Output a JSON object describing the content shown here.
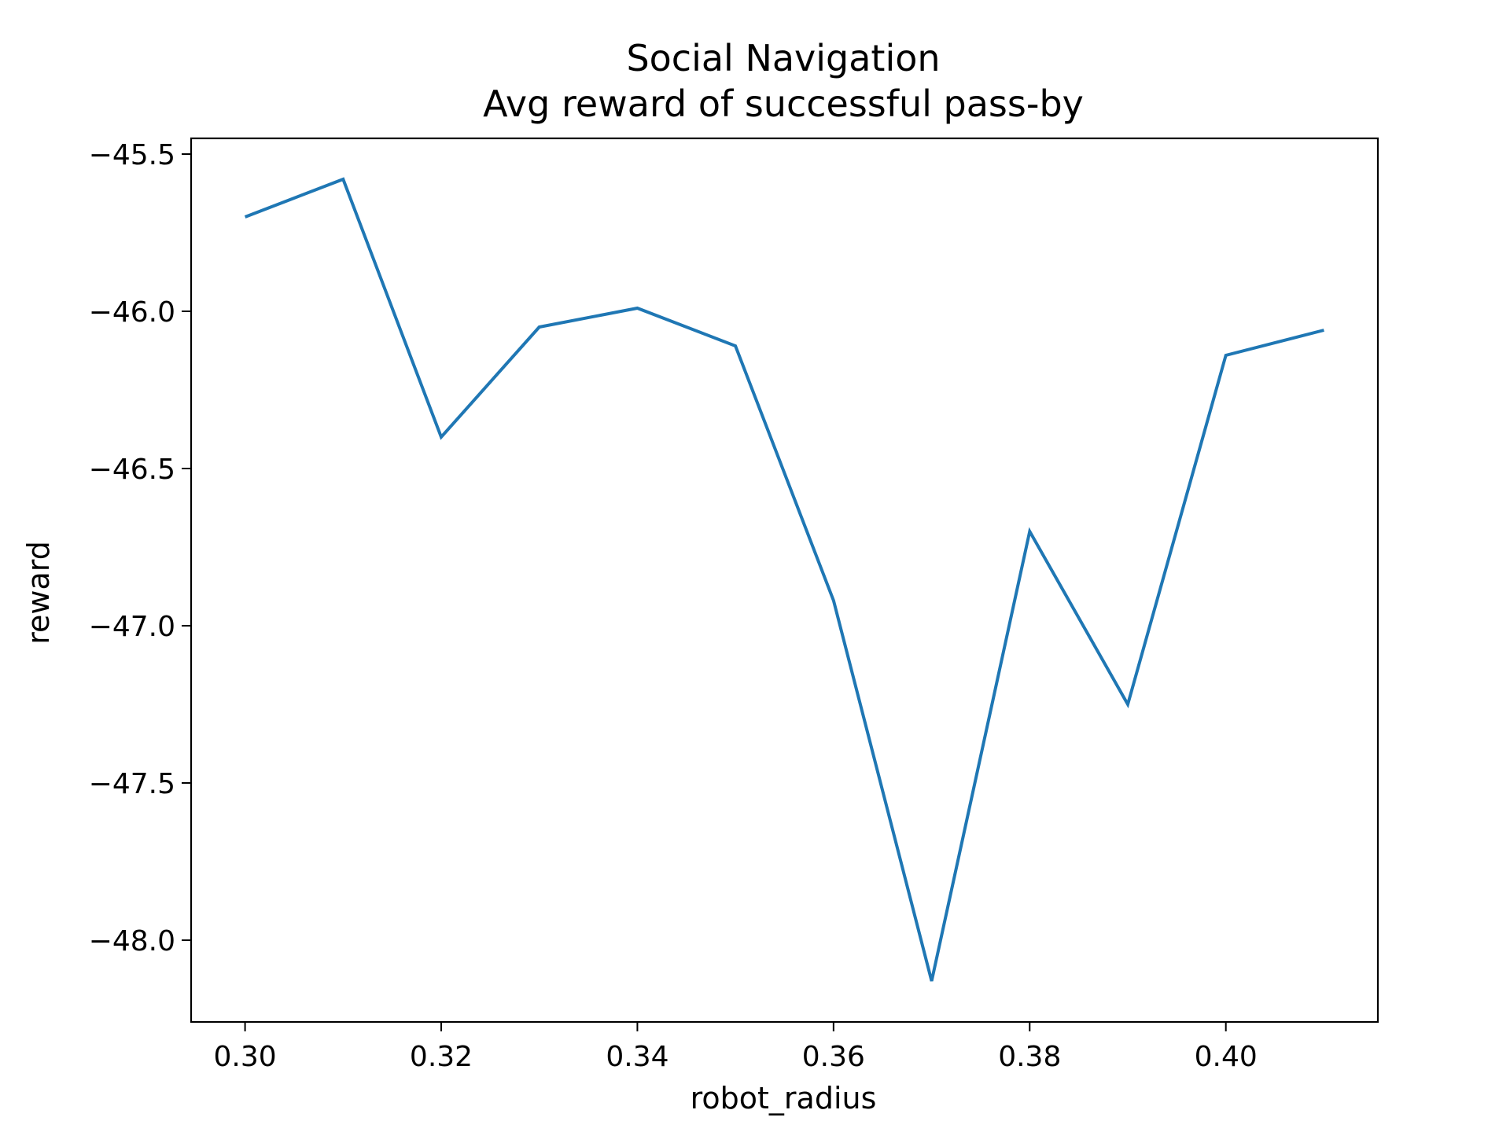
{
  "chart_data": {
    "type": "line",
    "title": "Social Navigation",
    "subtitle": "Avg reward of successful pass-by",
    "xlabel": "robot_radius",
    "ylabel": "reward",
    "xlim": [
      0.2945,
      0.4155
    ],
    "ylim": [
      -48.26,
      -45.45
    ],
    "x_ticks": [
      0.3,
      0.32,
      0.34,
      0.36,
      0.38,
      0.4
    ],
    "x_tick_labels": [
      "0.30",
      "0.32",
      "0.34",
      "0.36",
      "0.38",
      "0.40"
    ],
    "y_ticks": [
      -45.5,
      -46.0,
      -46.5,
      -47.0,
      -47.5,
      -48.0
    ],
    "y_tick_labels": [
      "−45.5",
      "−46.0",
      "−46.5",
      "−47.0",
      "−47.5",
      "−48.0"
    ],
    "grid": false,
    "series": [
      {
        "color": "#1f77b4",
        "x": [
          0.3,
          0.31,
          0.32,
          0.33,
          0.34,
          0.35,
          0.36,
          0.37,
          0.38,
          0.39,
          0.4,
          0.41
        ],
        "y": [
          -45.7,
          -45.58,
          -46.4,
          -46.05,
          -45.99,
          -46.11,
          -46.92,
          -48.13,
          -46.7,
          -47.25,
          -46.14,
          -46.06
        ]
      }
    ]
  }
}
